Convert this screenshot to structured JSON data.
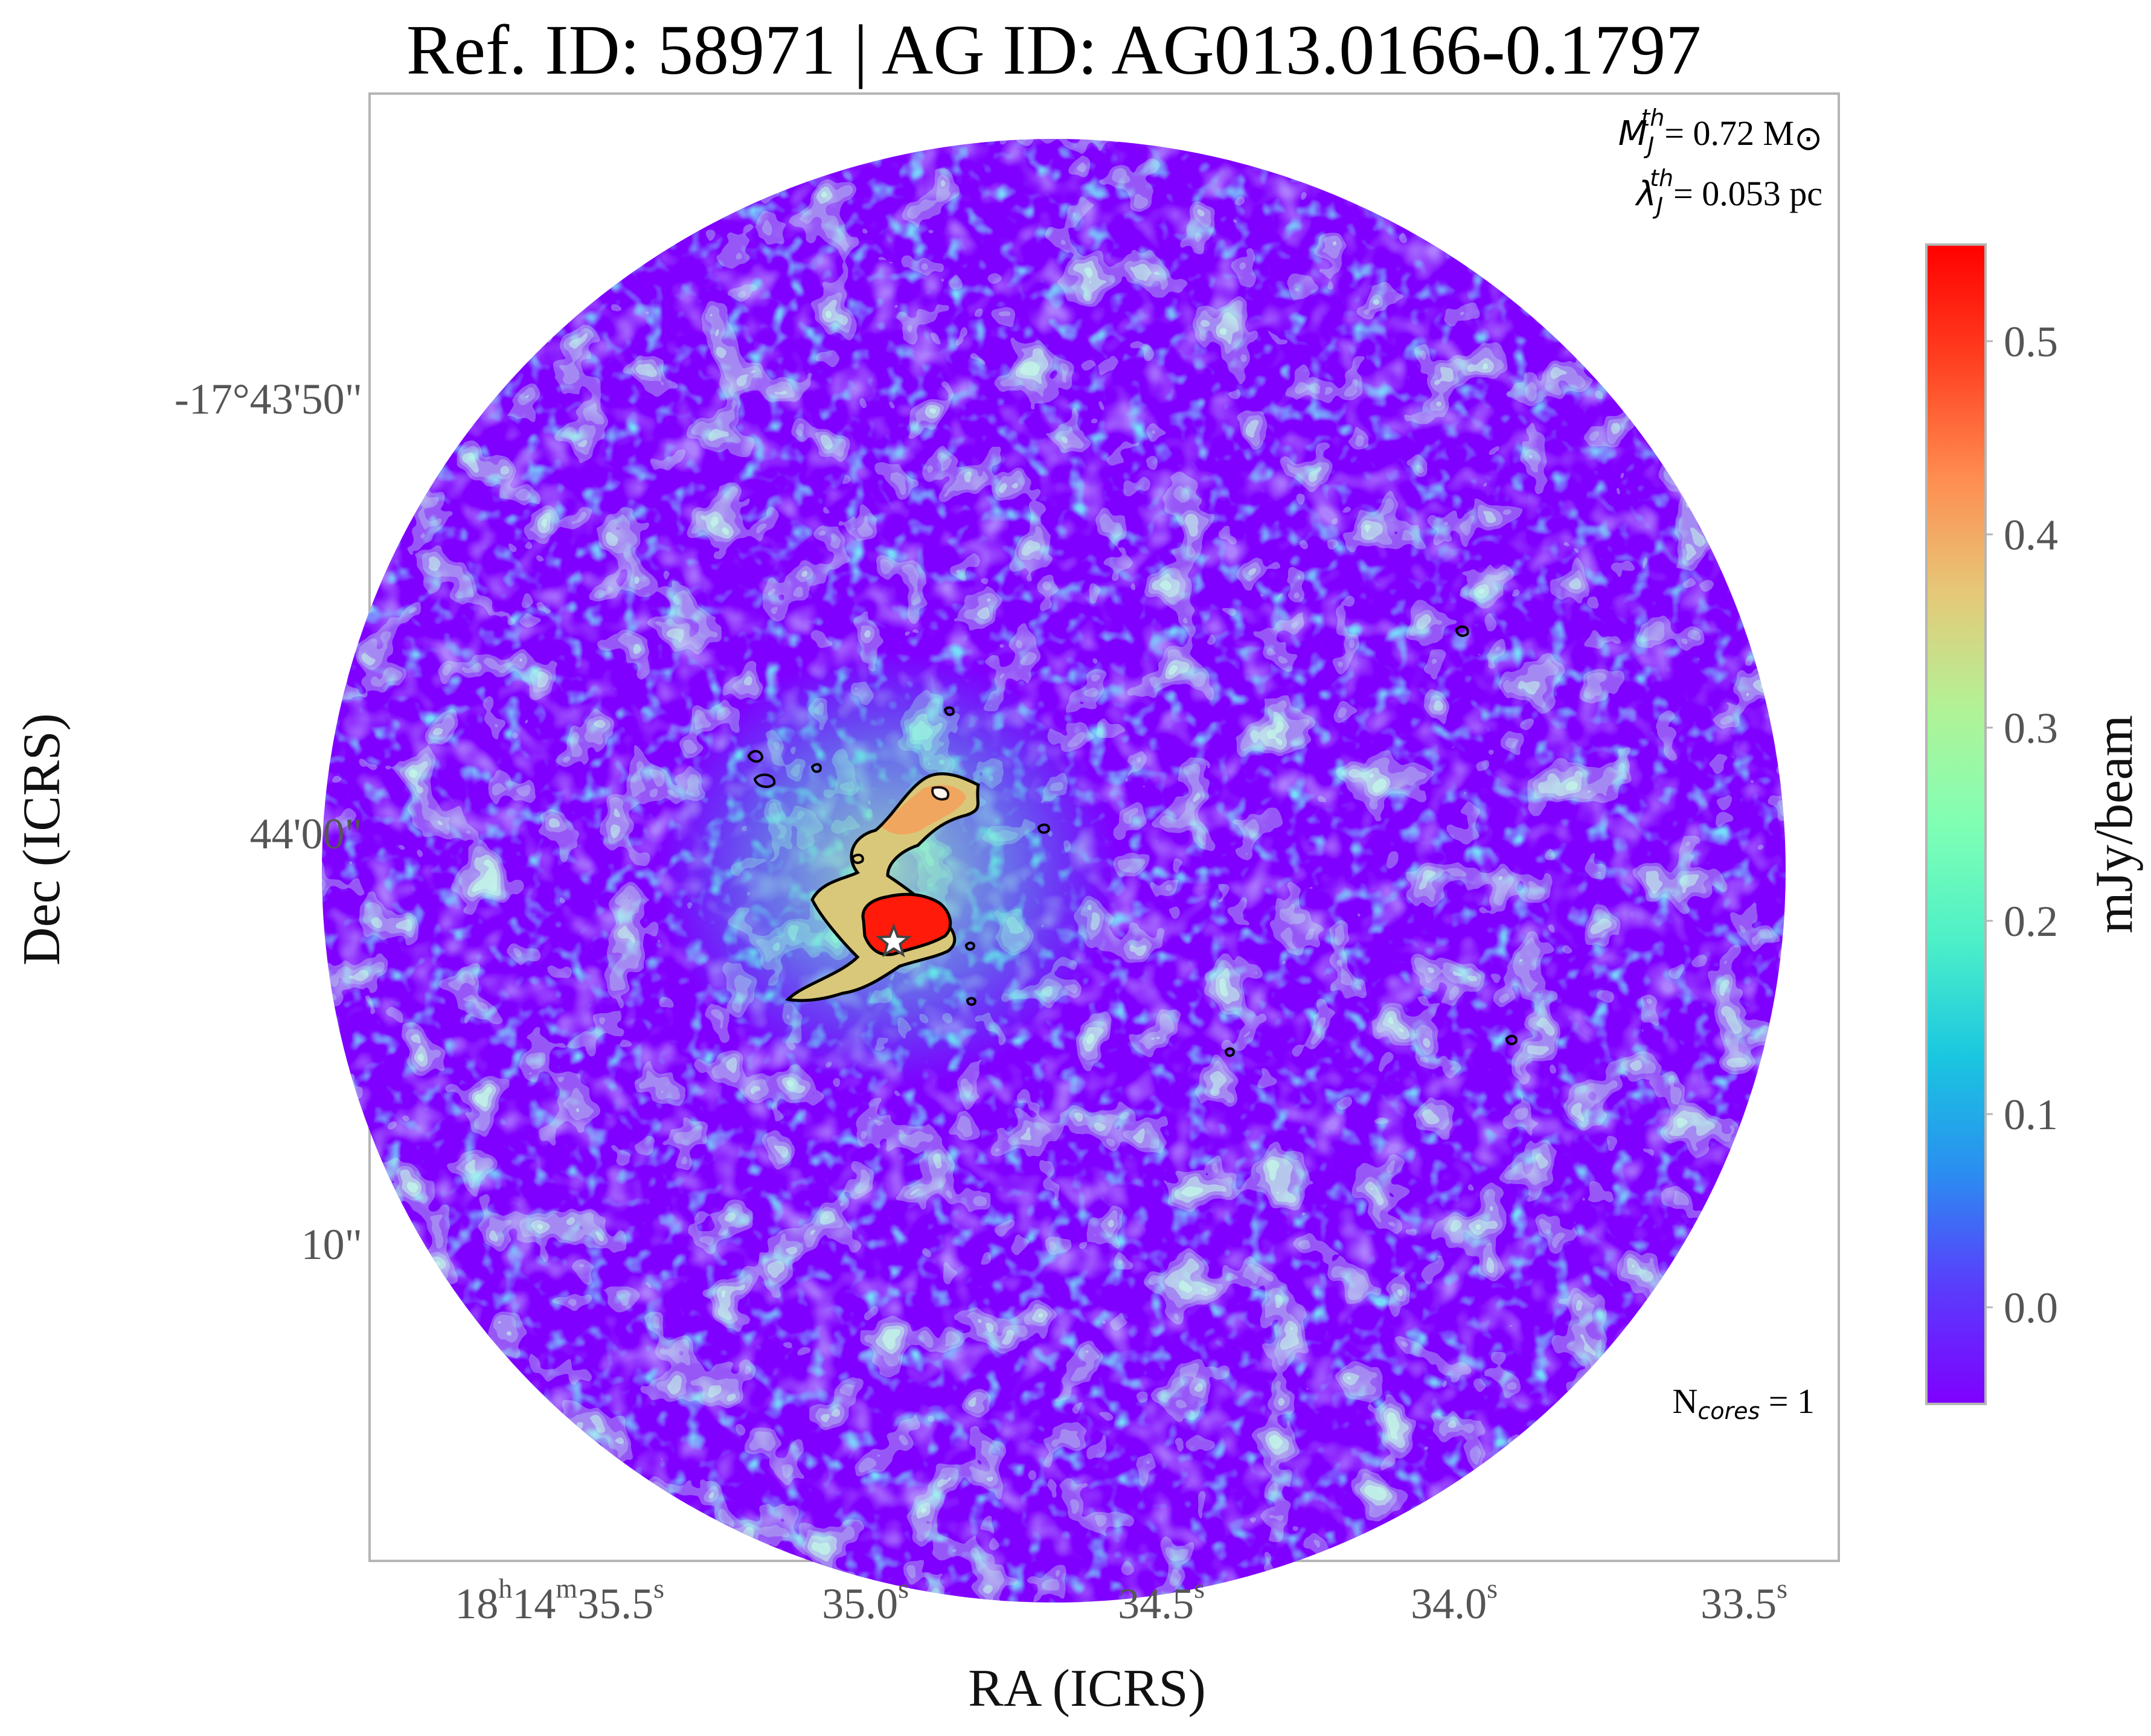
{
  "chart_data": {
    "type": "heatmap",
    "title": "Ref. ID: 58971 | AG ID: AG013.0166-0.1797",
    "xlabel": "RA (ICRS)",
    "ylabel": "Dec (ICRS)",
    "x_ticks": [
      {
        "value": "35.5",
        "label_main": "18",
        "label_h": "h",
        "label_mid": "14",
        "label_m": "m",
        "label_sec": "35.5",
        "label_s": "s"
      },
      {
        "value": "35.0",
        "label_sec": "35.0",
        "label_s": "s"
      },
      {
        "value": "34.5",
        "label_sec": "34.5",
        "label_s": "s"
      },
      {
        "value": "34.0",
        "label_sec": "34.0",
        "label_s": "s"
      },
      {
        "value": "33.5",
        "label_sec": "33.5",
        "label_s": "s"
      }
    ],
    "y_ticks": [
      {
        "label": "-17°43'50\""
      },
      {
        "label": "44'00\""
      },
      {
        "label": "10\""
      }
    ],
    "colorbar": {
      "label": "mJy/beam",
      "range": [
        -0.05,
        0.55
      ],
      "ticks": [
        0.0,
        0.1,
        0.2,
        0.3,
        0.4,
        0.5
      ],
      "tick_labels": [
        "0.0",
        "0.1",
        "0.2",
        "0.3",
        "0.4",
        "0.5"
      ],
      "colormap": "rainbow",
      "colors": [
        "#7f00ff",
        "#5a3cfc",
        "#2a8ef0",
        "#1ac7e0",
        "#4df0c8",
        "#80ffb4",
        "#b2f296",
        "#e6c878",
        "#ff8c50",
        "#ff4020",
        "#ff0000"
      ]
    },
    "annotations": {
      "mj_symbol": "M",
      "mj_sub": "J",
      "mj_sup": "th",
      "mj_value": "= 0.72 M",
      "mj_unit_symbol": "⊙",
      "lambda_symbol": "λ",
      "lambda_sub": "J",
      "lambda_sup": "th",
      "lambda_value": "= 0.053 pc",
      "ncores_prefix": "N",
      "ncores_sub": "cores",
      "ncores_value": " = 1"
    },
    "core_marker": {
      "shape": "star",
      "color": "#ffffff"
    },
    "contour_color": "#000000",
    "background_level": "0.0",
    "emission_peak": "0.55"
  }
}
